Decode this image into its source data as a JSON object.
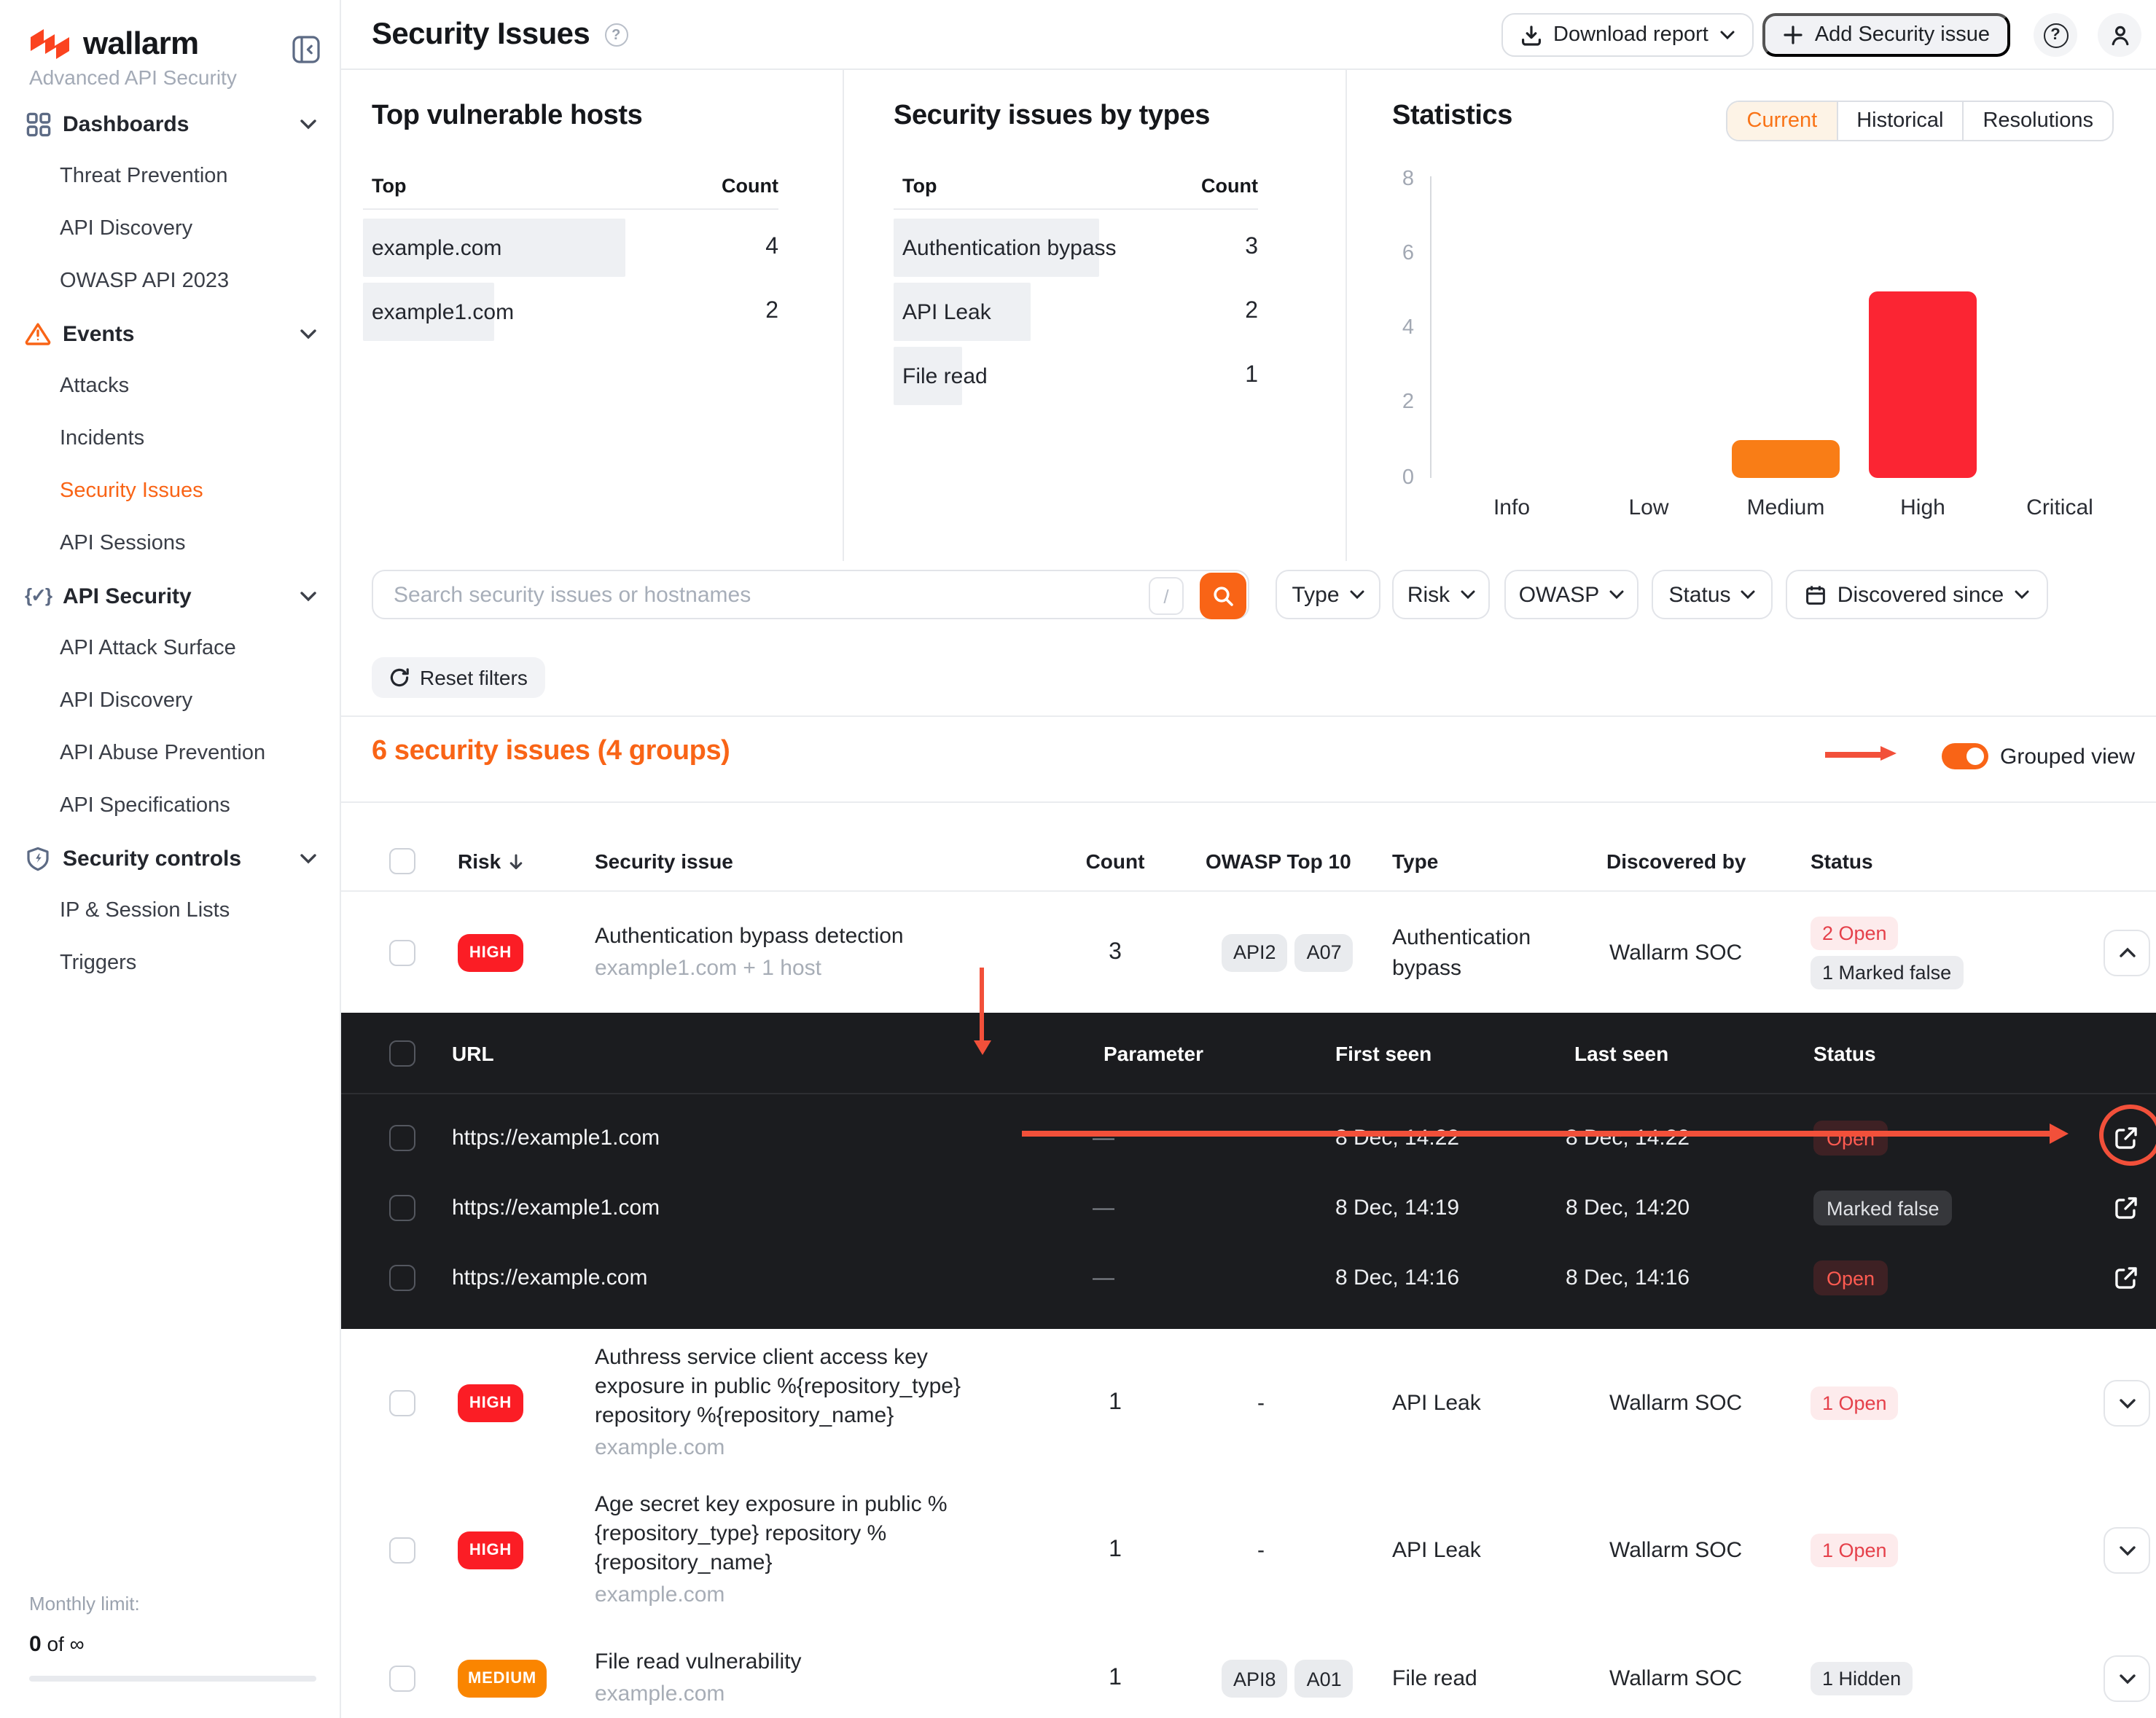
{
  "brand": {
    "name": "wallarm",
    "subtitle": "Advanced API Security",
    "accent": "#f96416"
  },
  "sidebar": {
    "sections": [
      {
        "label": "Dashboards",
        "icon": "grid-icon",
        "items": [
          "Threat Prevention",
          "API Discovery",
          "OWASP API 2023"
        ]
      },
      {
        "label": "Events",
        "icon": "warning-icon",
        "items": [
          "Attacks",
          "Incidents",
          "Security Issues",
          "API Sessions"
        ],
        "active_item": "Security Issues"
      },
      {
        "label": "API Security",
        "icon": "braces-icon",
        "items": [
          "API Attack Surface",
          "API Discovery",
          "API Abuse Prevention",
          "API Specifications"
        ]
      },
      {
        "label": "Security controls",
        "icon": "shield-icon",
        "items": [
          "IP & Session Lists",
          "Triggers"
        ]
      }
    ],
    "monthly_limit_label": "Monthly limit:",
    "monthly_limit_bold": "0",
    "monthly_limit_rest": "of ∞"
  },
  "header": {
    "title": "Security Issues",
    "download_report": "Download report",
    "add_security_issue": "Add Security issue"
  },
  "panels": {
    "top_vulnerable_hosts": {
      "title": "Top vulnerable hosts",
      "col_top": "Top",
      "col_count": "Count",
      "rows": [
        {
          "name": "example.com",
          "count": 4
        },
        {
          "name": "example1.com",
          "count": 2
        }
      ]
    },
    "issues_by_types": {
      "title": "Security issues by types",
      "col_top": "Top",
      "col_count": "Count",
      "rows": [
        {
          "name": "Authentication bypass",
          "count": 3
        },
        {
          "name": "API Leak",
          "count": 2
        },
        {
          "name": "File read",
          "count": 1
        }
      ]
    },
    "statistics": {
      "title": "Statistics",
      "tabs": [
        "Current",
        "Historical",
        "Resolutions"
      ],
      "active_tab": "Current"
    }
  },
  "chart_data": {
    "type": "bar",
    "title": "Statistics",
    "categories": [
      "Info",
      "Low",
      "Medium",
      "High",
      "Critical"
    ],
    "values": [
      0,
      0,
      1,
      5,
      0
    ],
    "colors": [
      "",
      "",
      "#f97d16",
      "#fb2533",
      ""
    ],
    "ylim": [
      0,
      8
    ],
    "yticks": [
      0,
      2,
      4,
      6,
      8
    ],
    "grid": false,
    "legend": false
  },
  "filters": {
    "search_placeholder": "Search security issues or hostnames",
    "shortcut": "/",
    "type": "Type",
    "risk": "Risk",
    "owasp": "OWASP",
    "status": "Status",
    "since": "Discovered since",
    "reset": "Reset filters"
  },
  "results": {
    "summary": "6 security issues (4 groups)",
    "grouped_view": "Grouped view",
    "grouped_view_on": true
  },
  "table": {
    "headers": {
      "risk": "Risk",
      "issue": "Security issue",
      "count": "Count",
      "owasp": "OWASP Top 10",
      "type": "Type",
      "discovered": "Discovered by",
      "status": "Status"
    },
    "rows": [
      {
        "risk": "HIGH",
        "title": "Authentication bypass detection",
        "subtitle": "example1.com + 1 host",
        "count": "3",
        "owasp": [
          "API2",
          "A07"
        ],
        "type": "Authentication bypass",
        "discovered": "Wallarm SOC",
        "statuses": [
          {
            "label": "2 Open",
            "kind": "open"
          },
          {
            "label": "1 Marked false",
            "kind": "muted"
          }
        ],
        "expanded": true
      },
      {
        "risk": "HIGH",
        "title": "Authress service client access key exposure in public %{repository_type} repository %{repository_name}",
        "subtitle": "example.com",
        "count": "1",
        "owasp_dash": "-",
        "type": "API Leak",
        "discovered": "Wallarm SOC",
        "statuses": [
          {
            "label": "1 Open",
            "kind": "open"
          }
        ]
      },
      {
        "risk": "HIGH",
        "title": "Age secret key exposure in public %{repository_type} repository %{repository_name}",
        "subtitle": "example.com",
        "count": "1",
        "owasp_dash": "-",
        "type": "API Leak",
        "discovered": "Wallarm SOC",
        "statuses": [
          {
            "label": "1 Open",
            "kind": "open"
          }
        ]
      },
      {
        "risk": "MEDIUM",
        "title": "File read vulnerability",
        "subtitle": "example.com",
        "count": "1",
        "owasp": [
          "API8",
          "A01"
        ],
        "type": "File read",
        "discovered": "Wallarm SOC",
        "statuses": [
          {
            "label": "1 Hidden",
            "kind": "muted"
          }
        ]
      }
    ],
    "subtable": {
      "headers": {
        "url": "URL",
        "parameter": "Parameter",
        "first_seen": "First seen",
        "last_seen": "Last seen",
        "status": "Status"
      },
      "rows": [
        {
          "url": "https://example1.com",
          "parameter": "—",
          "first_seen": "8 Dec, 14:22",
          "last_seen": "8 Dec, 14:22",
          "status": "Open",
          "kind": "open"
        },
        {
          "url": "https://example1.com",
          "parameter": "—",
          "first_seen": "8 Dec, 14:19",
          "last_seen": "8 Dec, 14:20",
          "status": "Marked false",
          "kind": "muted"
        },
        {
          "url": "https://example.com",
          "parameter": "—",
          "first_seen": "8 Dec, 14:16",
          "last_seen": "8 Dec, 14:16",
          "status": "Open",
          "kind": "open"
        }
      ]
    }
  }
}
